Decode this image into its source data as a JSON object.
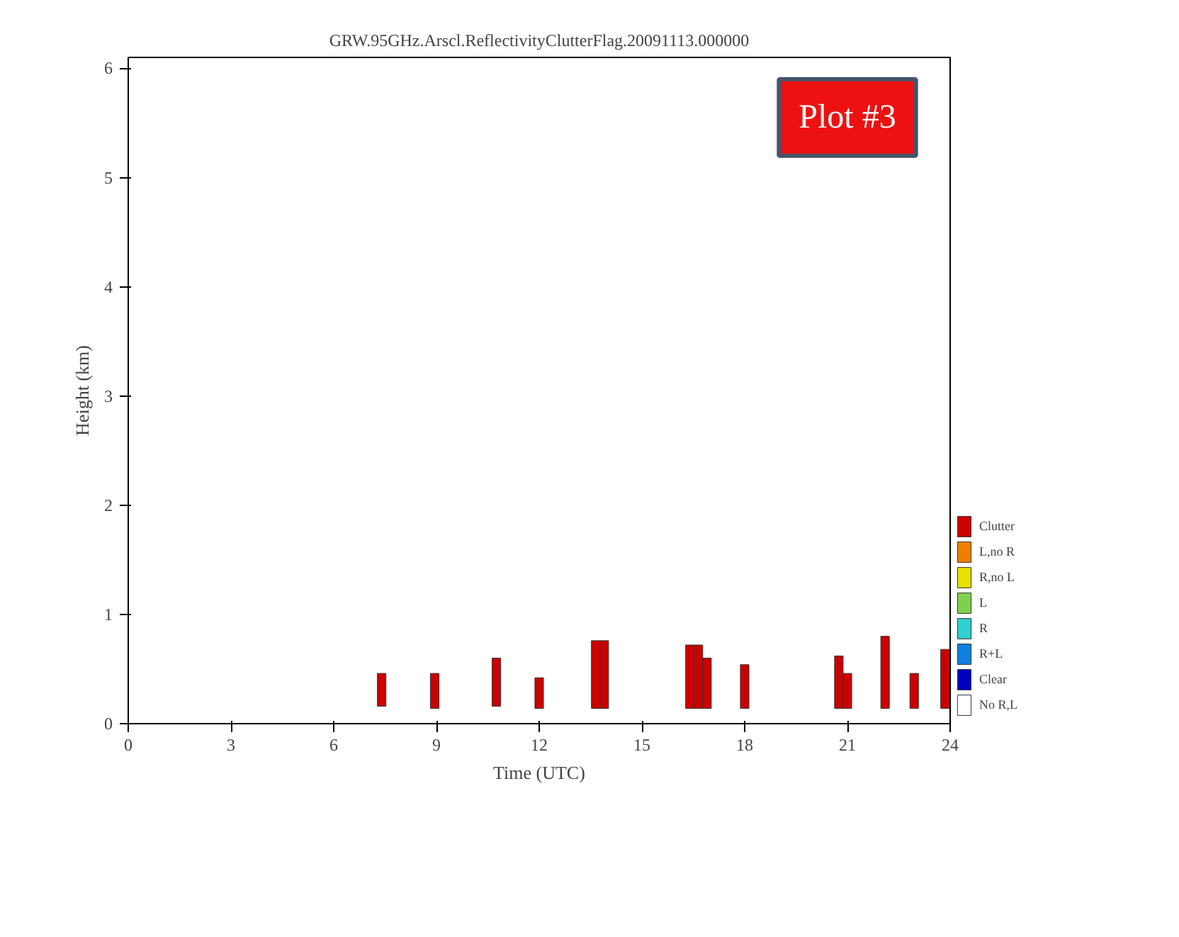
{
  "chart_data": {
    "type": "bar",
    "title": "GRW.95GHz.Arscl.ReflectivityClutterFlag.20091113.000000",
    "xlabel": "Time (UTC)",
    "ylabel": "Height (km)",
    "x": [
      7.4,
      8.95,
      10.75,
      12.0,
      13.65,
      13.9,
      16.4,
      16.65,
      16.9,
      18.0,
      20.75,
      21.0,
      22.1,
      22.95,
      23.85
    ],
    "series": [
      {
        "name": "Clutter",
        "color": "#cc0000",
        "base": [
          0.16,
          0.14,
          0.16,
          0.14,
          0.14,
          0.14,
          0.14,
          0.14,
          0.14,
          0.14,
          0.14,
          0.14,
          0.14,
          0.14,
          0.14
        ],
        "values": [
          0.3,
          0.32,
          0.44,
          0.28,
          0.62,
          0.62,
          0.58,
          0.58,
          0.46,
          0.4,
          0.48,
          0.32,
          0.66,
          0.32,
          0.54
        ]
      },
      {
        "name": "L,no R",
        "color": "#f07f00",
        "values": [
          null,
          null,
          null,
          null,
          null,
          null,
          null,
          null,
          null,
          null,
          null,
          null,
          null,
          null,
          null
        ]
      },
      {
        "name": "R,no L",
        "color": "#e8e000",
        "values": [
          null,
          null,
          null,
          null,
          null,
          null,
          null,
          null,
          null,
          null,
          null,
          null,
          null,
          null,
          null
        ]
      },
      {
        "name": "L",
        "color": "#7fd04f",
        "values": [
          null,
          null,
          null,
          null,
          null,
          null,
          null,
          null,
          null,
          null,
          null,
          null,
          null,
          null,
          null
        ]
      },
      {
        "name": "R",
        "color": "#30d0d0",
        "values": [
          null,
          null,
          null,
          null,
          null,
          null,
          null,
          null,
          null,
          null,
          null,
          null,
          null,
          null,
          null
        ]
      },
      {
        "name": "R+L",
        "color": "#1080e0",
        "values": [
          null,
          null,
          null,
          null,
          null,
          null,
          null,
          null,
          null,
          null,
          null,
          null,
          null,
          null,
          null
        ]
      },
      {
        "name": "Clear",
        "color": "#0000c0",
        "values": [
          null,
          null,
          null,
          null,
          null,
          null,
          null,
          null,
          null,
          null,
          null,
          null,
          null,
          null,
          null
        ]
      },
      {
        "name": "No R,L",
        "color": "#ffffff",
        "values": [
          null,
          null,
          null,
          null,
          null,
          null,
          null,
          null,
          null,
          null,
          null,
          null,
          null,
          null,
          null
        ]
      }
    ],
    "xlim": [
      0,
      24
    ],
    "xticks": [
      0,
      3,
      6,
      9,
      12,
      15,
      18,
      21,
      24
    ],
    "ylim": [
      0,
      6.1
    ],
    "yticks": [
      0,
      1,
      2,
      3,
      4,
      5,
      6
    ],
    "grid": false,
    "legend": "right",
    "annotations": [
      "Plot #3"
    ]
  }
}
